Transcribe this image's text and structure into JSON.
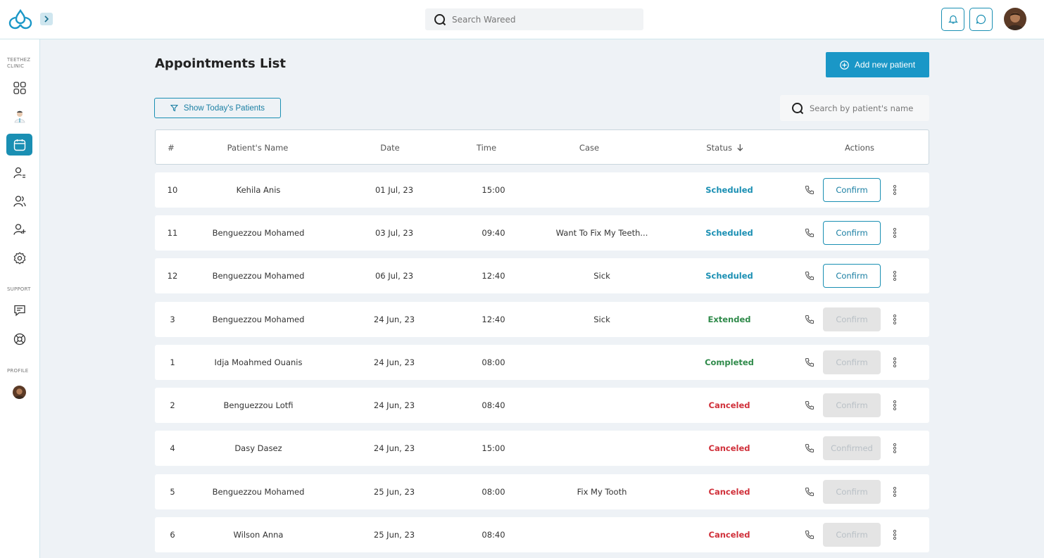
{
  "header": {
    "search_placeholder": "Search Wareed",
    "icons": [
      "bell-icon",
      "chat-icon"
    ]
  },
  "sidebar": {
    "clinic_label": "TEETHEZ CLINIC",
    "support_label": "SUPPORT",
    "profile_label": "PROFILE",
    "items": [
      {
        "name": "dashboard",
        "icon": "grid-icon",
        "active": false
      },
      {
        "name": "doctor",
        "icon": "doctor-avatar-icon",
        "active": false
      },
      {
        "name": "appointments",
        "icon": "calendar-icon",
        "active": true
      },
      {
        "name": "patients-list",
        "icon": "user-list-icon",
        "active": false
      },
      {
        "name": "team",
        "icon": "users-icon",
        "active": false
      },
      {
        "name": "add-user",
        "icon": "user-plus-icon",
        "active": false
      },
      {
        "name": "settings",
        "icon": "gear-icon",
        "active": false
      },
      {
        "name": "messages",
        "icon": "message-icon",
        "active": false
      },
      {
        "name": "help",
        "icon": "lifebuoy-icon",
        "active": false
      }
    ]
  },
  "page": {
    "title": "Appointments List",
    "add_button": "Add new patient",
    "today_filter": "Show Today's Patients",
    "search_placeholder": "Search by patient's name"
  },
  "table": {
    "headers": {
      "num": "#",
      "name": "Patient's Name",
      "date": "Date",
      "time": "Time",
      "case": "Case",
      "status": "Status",
      "actions": "Actions"
    },
    "rows": [
      {
        "num": "10",
        "name": "Kehila Anis",
        "date": "01 Jul, 23",
        "time": "15:00",
        "case": "",
        "status": "Scheduled",
        "action": "Confirm",
        "enabled": true
      },
      {
        "num": "11",
        "name": "Benguezzou Mohamed",
        "date": "03 Jul, 23",
        "time": "09:40",
        "case": "Want To Fix My Teeth...",
        "status": "Scheduled",
        "action": "Confirm",
        "enabled": true
      },
      {
        "num": "12",
        "name": "Benguezzou Mohamed",
        "date": "06 Jul, 23",
        "time": "12:40",
        "case": "Sick",
        "status": "Scheduled",
        "action": "Confirm",
        "enabled": true
      },
      {
        "num": "3",
        "name": "Benguezzou Mohamed",
        "date": "24 Jun, 23",
        "time": "12:40",
        "case": "Sick",
        "status": "Extended",
        "action": "Confirm",
        "enabled": false
      },
      {
        "num": "1",
        "name": "Idja Moahmed Ouanis",
        "date": "24 Jun, 23",
        "time": "08:00",
        "case": "",
        "status": "Completed",
        "action": "Confirm",
        "enabled": false
      },
      {
        "num": "2",
        "name": "Benguezzou Lotfi",
        "date": "24 Jun, 23",
        "time": "08:40",
        "case": "",
        "status": "Canceled",
        "action": "Confirm",
        "enabled": false
      },
      {
        "num": "4",
        "name": "Dasy Dasez",
        "date": "24 Jun, 23",
        "time": "15:00",
        "case": "",
        "status": "Canceled",
        "action": "Confirmed",
        "enabled": false
      },
      {
        "num": "5",
        "name": "Benguezzou Mohamed",
        "date": "25 Jun, 23",
        "time": "08:00",
        "case": "Fix My Tooth",
        "status": "Canceled",
        "action": "Confirm",
        "enabled": false
      },
      {
        "num": "6",
        "name": "Wilson Anna",
        "date": "25 Jun, 23",
        "time": "08:40",
        "case": "",
        "status": "Canceled",
        "action": "Confirm",
        "enabled": false
      }
    ]
  },
  "colors": {
    "accent": "#1a97c7",
    "scheduled": "#1a8fb3",
    "extended": "#2f8a4a",
    "completed": "#2f8a4a",
    "canceled": "#d0303a"
  }
}
